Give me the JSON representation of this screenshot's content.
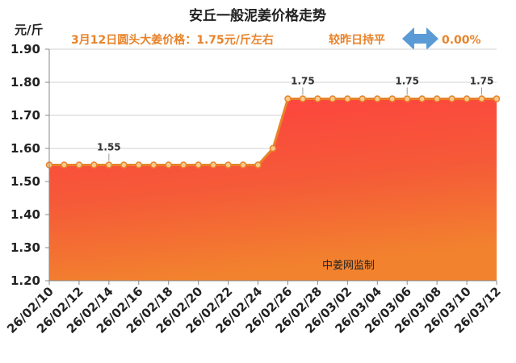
{
  "chart_data": {
    "type": "area",
    "title": "安丘一般泥姜价格走势",
    "subtitle": "3月12日圆头大姜价格：1.75元/斤左右",
    "compare_text": "较昨日持平",
    "change_text": "0.00%",
    "ylabel": "元/斤",
    "watermark": "中姜网监制",
    "ylim": [
      1.2,
      1.9
    ],
    "yticks": [
      "1.20",
      "1.30",
      "1.40",
      "1.50",
      "1.60",
      "1.70",
      "1.80",
      "1.90"
    ],
    "x_tick_labels": [
      "26/02/10",
      "26/02/12",
      "26/02/14",
      "26/02/16",
      "26/02/18",
      "26/02/20",
      "26/02/22",
      "26/02/24",
      "26/02/26",
      "26/02/28",
      "26/03/02",
      "26/03/04",
      "26/03/06",
      "26/03/08",
      "26/03/10",
      "26/03/12"
    ],
    "values": [
      1.55,
      1.55,
      1.55,
      1.55,
      1.55,
      1.55,
      1.55,
      1.55,
      1.55,
      1.55,
      1.55,
      1.55,
      1.55,
      1.55,
      1.55,
      1.6,
      1.75,
      1.75,
      1.75,
      1.75,
      1.75,
      1.75,
      1.75,
      1.75,
      1.75,
      1.75,
      1.75,
      1.75,
      1.75,
      1.75,
      1.75
    ],
    "data_labels": [
      {
        "index": 4,
        "text": "1.55"
      },
      {
        "index": 17,
        "text": "1.75"
      },
      {
        "index": 24,
        "text": "1.75"
      },
      {
        "index": 29,
        "text": "1.75"
      }
    ],
    "colors": {
      "area_top": "#ff4040",
      "area_bottom": "#f47d2e",
      "line": "#e8832a",
      "marker_fill": "#f7c98a",
      "arrow": "#5b9bd5"
    },
    "grid": true
  }
}
